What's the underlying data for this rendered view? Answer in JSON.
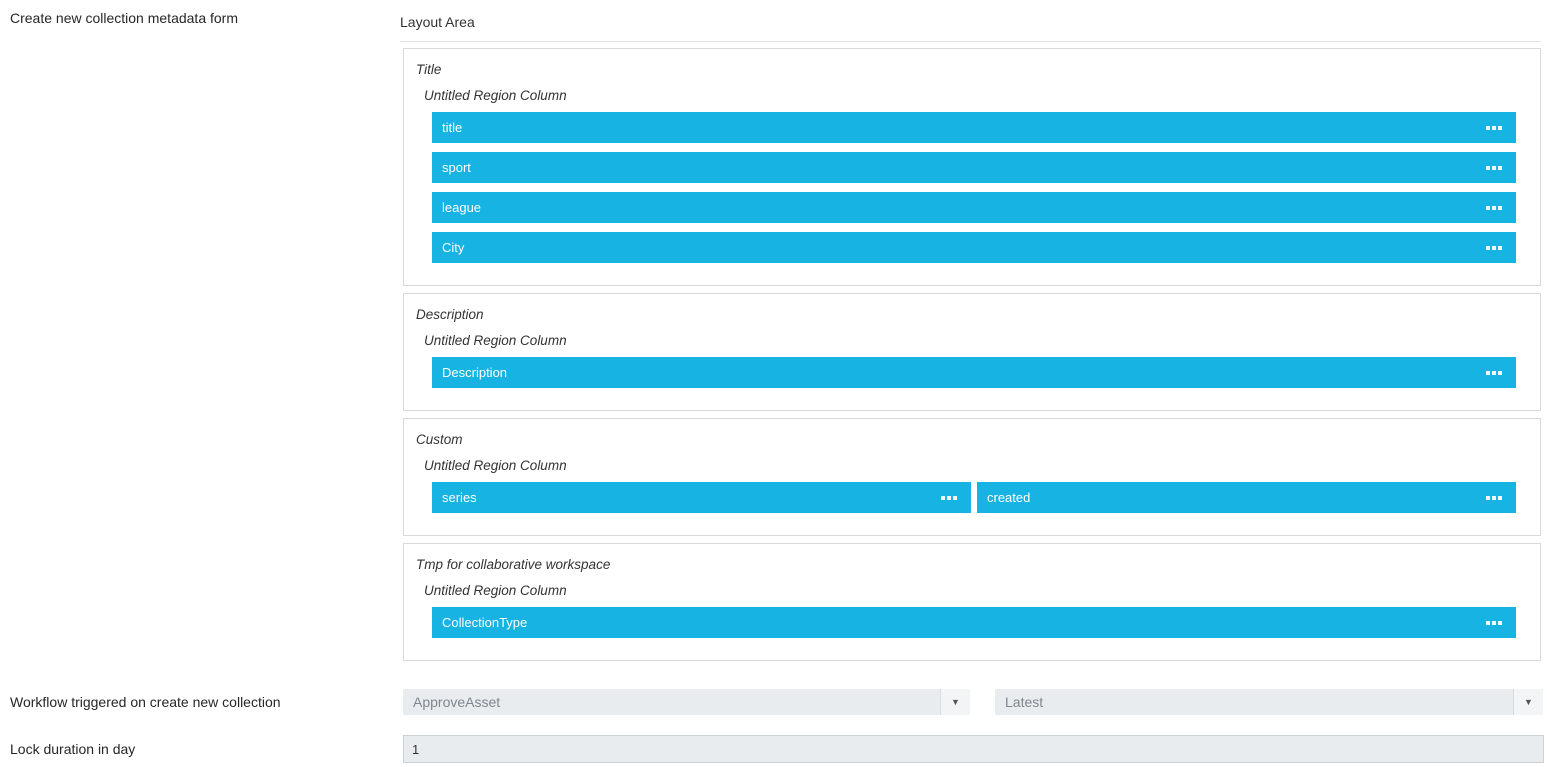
{
  "page": {
    "form_label": "Create new collection metadata form",
    "layout_area_label": "Layout Area"
  },
  "colors": {
    "field_bar_blue": "#17b3e3",
    "control_bg": "#e9ecef",
    "box_border": "#d9d9d9"
  },
  "icons": {
    "drag_handle": "drag-handle-icon",
    "dropdown_arrow": "▼"
  },
  "layout": {
    "regions": [
      {
        "title": "Title",
        "column_label": "Untitled Region Column",
        "fields": [
          "title",
          "sport",
          "league",
          "City"
        ]
      },
      {
        "title": "Description",
        "column_label": "Untitled Region Column",
        "fields": [
          "Description"
        ]
      },
      {
        "title": "Custom",
        "column_label": "Untitled Region Column",
        "fields": [
          "series",
          "created"
        ]
      },
      {
        "title": "Tmp for collaborative workspace",
        "column_label": "Untitled Region Column",
        "fields": [
          "CollectionType"
        ]
      }
    ]
  },
  "workflow": {
    "label": "Workflow triggered on create new collection",
    "workflow_select_value": "ApproveAsset",
    "version_select_value": "Latest"
  },
  "lock_duration": {
    "label": "Lock duration in day",
    "value": "1"
  }
}
